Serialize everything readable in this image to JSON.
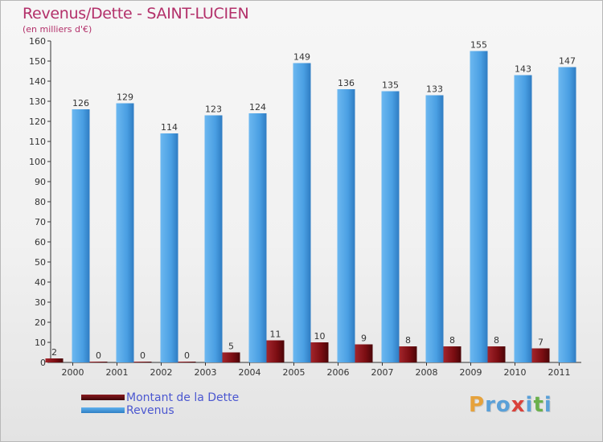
{
  "chart_data": {
    "type": "bar",
    "title": "Revenus/Dette - SAINT-LUCIEN",
    "subtitle": "(en milliers d'€)",
    "categories": [
      "2000",
      "2001",
      "2002",
      "2003",
      "2004",
      "2005",
      "2006",
      "2007",
      "2008",
      "2009",
      "2010",
      "2011"
    ],
    "series": [
      {
        "name": "Montant de la Dette",
        "color": "#7a0d12",
        "values": [
          2,
          0,
          0,
          0,
          5,
          11,
          10,
          9,
          8,
          8,
          8,
          7
        ]
      },
      {
        "name": "Revenus",
        "color": "#4a9fe3",
        "values": [
          126,
          129,
          114,
          123,
          124,
          149,
          136,
          135,
          133,
          155,
          143,
          147
        ]
      }
    ],
    "ylim": [
      0,
      160
    ],
    "yticks": [
      0,
      10,
      20,
      30,
      40,
      50,
      60,
      70,
      80,
      90,
      100,
      110,
      120,
      130,
      140,
      150,
      160
    ],
    "grid": false,
    "legend_position": "bottom-left"
  },
  "logo": {
    "letters": [
      "P",
      "r",
      "o",
      "x",
      "i",
      "t",
      "i"
    ],
    "colors": [
      "#e6a23c",
      "#5aa0d8",
      "#5aa0d8",
      "#d9423b",
      "#5aa0d8",
      "#6ab04c",
      "#5aa0d8"
    ]
  }
}
